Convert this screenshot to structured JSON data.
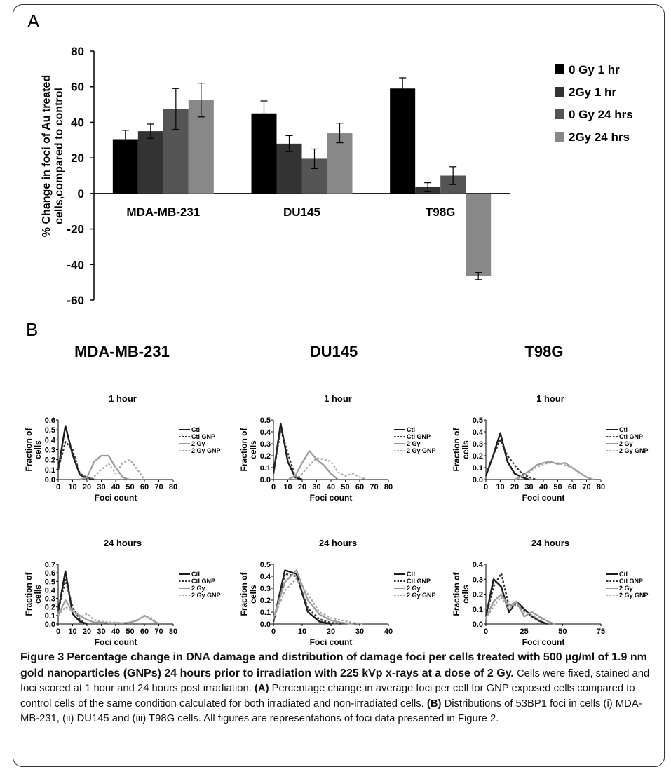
{
  "panel_a_label": "A",
  "panel_b_label": "B",
  "columns": [
    "MDA-MB-231",
    "DU145",
    "T98G"
  ],
  "chart_data": [
    {
      "id": "A",
      "type": "bar",
      "ylabel": "% Change in foci of Au treated cells,compared to control",
      "xlabel": "",
      "categories": [
        "MDA-MB-231",
        "DU145",
        "T98G"
      ],
      "ylim": [
        -60,
        80
      ],
      "yticks": [
        -60,
        -40,
        -20,
        0,
        20,
        40,
        60,
        80
      ],
      "legend_position": "right",
      "series": [
        {
          "name": "0 Gy 1 hr",
          "color": "#000000",
          "values": [
            30.5,
            45,
            59
          ],
          "errors": [
            5,
            7,
            6
          ]
        },
        {
          "name": "2Gy 1 hr",
          "color": "#333333",
          "values": [
            35,
            28,
            3.5
          ],
          "errors": [
            4,
            4.5,
            2.5
          ]
        },
        {
          "name": "0 Gy 24 hrs",
          "color": "#555555",
          "values": [
            47.5,
            19.5,
            10
          ],
          "errors": [
            11.5,
            5.5,
            5
          ]
        },
        {
          "name": "2Gy 24 hrs",
          "color": "#888888",
          "values": [
            52.5,
            34,
            -46.5
          ],
          "errors": [
            9.5,
            5.5,
            2
          ]
        }
      ]
    },
    {
      "id": "B-MDA-1h",
      "type": "line",
      "title": "1 hour",
      "xlabel": "Foci count",
      "ylabel": "Fraction of cells",
      "xlim": [
        0,
        80
      ],
      "ylim": [
        0,
        0.6
      ],
      "xticks": [
        0,
        10,
        20,
        30,
        40,
        50,
        60,
        70,
        80
      ],
      "yticks": [
        0,
        0.1,
        0.2,
        0.3,
        0.4,
        0.5,
        0.6
      ],
      "series": [
        {
          "name": "Ctl",
          "style": "solid-dark",
          "x": [
            0,
            5,
            10,
            15,
            20,
            25
          ],
          "y": [
            0.1,
            0.54,
            0.25,
            0.05,
            0.01,
            0
          ]
        },
        {
          "name": "Ctl GNP",
          "style": "dash-dark",
          "x": [
            0,
            5,
            10,
            15,
            20,
            25
          ],
          "y": [
            0.1,
            0.38,
            0.3,
            0.06,
            0.02,
            0
          ]
        },
        {
          "name": "2 Gy",
          "style": "solid-grey",
          "x": [
            15,
            20,
            25,
            30,
            35,
            40,
            45,
            50
          ],
          "y": [
            0,
            0.02,
            0.18,
            0.24,
            0.24,
            0.12,
            0.02,
            0
          ]
        },
        {
          "name": "2 Gy GNP",
          "style": "dash-grey",
          "x": [
            20,
            25,
            30,
            35,
            40,
            45,
            50,
            55,
            60
          ],
          "y": [
            0,
            0.03,
            0.1,
            0.16,
            0.06,
            0.17,
            0.2,
            0.1,
            0
          ]
        }
      ]
    },
    {
      "id": "B-DU145-1h",
      "type": "line",
      "title": "1 hour",
      "xlabel": "Foci count",
      "ylabel": "Fraction of cells",
      "xlim": [
        0,
        80
      ],
      "ylim": [
        0,
        0.5
      ],
      "xticks": [
        0,
        10,
        20,
        30,
        40,
        50,
        60,
        70,
        80
      ],
      "yticks": [
        0,
        0.1,
        0.2,
        0.3,
        0.4,
        0.5
      ],
      "series": [
        {
          "name": "Ctl",
          "style": "solid-dark",
          "x": [
            0,
            5,
            10,
            15,
            20
          ],
          "y": [
            0.05,
            0.47,
            0.15,
            0.02,
            0
          ]
        },
        {
          "name": "Ctl GNP",
          "style": "dash-dark",
          "x": [
            0,
            5,
            10,
            15,
            20
          ],
          "y": [
            0.05,
            0.42,
            0.22,
            0.03,
            0
          ]
        },
        {
          "name": "2 Gy",
          "style": "solid-grey",
          "x": [
            10,
            15,
            20,
            25,
            30,
            35,
            40,
            45
          ],
          "y": [
            0,
            0.03,
            0.14,
            0.24,
            0.17,
            0.12,
            0.05,
            0
          ]
        },
        {
          "name": "2 Gy GNP",
          "style": "dash-grey",
          "x": [
            15,
            20,
            25,
            30,
            35,
            40,
            45,
            50,
            55,
            60,
            65
          ],
          "y": [
            0,
            0.05,
            0.12,
            0.18,
            0.17,
            0.15,
            0.06,
            0.03,
            0.05,
            0.02,
            0
          ]
        }
      ]
    },
    {
      "id": "B-T98G-1h",
      "type": "line",
      "title": "1 hour",
      "xlabel": "Foci count",
      "ylabel": "Fraction of cells",
      "xlim": [
        0,
        80
      ],
      "ylim": [
        0,
        0.5
      ],
      "xticks": [
        0,
        10,
        20,
        30,
        40,
        50,
        60,
        70,
        80
      ],
      "yticks": [
        0,
        0.1,
        0.2,
        0.3,
        0.4,
        0.5
      ],
      "series": [
        {
          "name": "Ctl",
          "style": "solid-dark",
          "x": [
            0,
            5,
            10,
            15,
            20,
            25,
            30
          ],
          "y": [
            0.03,
            0.2,
            0.39,
            0.15,
            0.05,
            0.02,
            0
          ]
        },
        {
          "name": "Ctl GNP",
          "style": "dash-dark",
          "x": [
            0,
            5,
            10,
            15,
            20,
            25,
            30,
            35
          ],
          "y": [
            0.05,
            0.2,
            0.33,
            0.2,
            0.12,
            0.05,
            0.02,
            0
          ]
        },
        {
          "name": "2 Gy",
          "style": "solid-grey",
          "x": [
            20,
            25,
            30,
            35,
            40,
            45,
            50,
            55,
            60,
            65,
            70,
            75
          ],
          "y": [
            0,
            0.03,
            0.07,
            0.12,
            0.14,
            0.15,
            0.13,
            0.14,
            0.1,
            0.06,
            0.02,
            0
          ]
        },
        {
          "name": "2 Gy GNP",
          "style": "dash-grey",
          "x": [
            20,
            25,
            30,
            35,
            40,
            45,
            50,
            55,
            60,
            65,
            70,
            75
          ],
          "y": [
            0,
            0.02,
            0.06,
            0.1,
            0.13,
            0.14,
            0.14,
            0.12,
            0.1,
            0.05,
            0.02,
            0
          ]
        }
      ]
    },
    {
      "id": "B-MDA-24h",
      "type": "line",
      "title": "24 hours",
      "xlabel": "Foci count",
      "ylabel": "Fraction of cells",
      "xlim": [
        0,
        80
      ],
      "ylim": [
        0,
        0.7
      ],
      "xticks": [
        0,
        10,
        20,
        30,
        40,
        50,
        60,
        70,
        80
      ],
      "yticks": [
        0,
        0.1,
        0.2,
        0.3,
        0.4,
        0.5,
        0.6,
        0.7
      ],
      "series": [
        {
          "name": "Ctl",
          "style": "solid-dark",
          "x": [
            0,
            5,
            10,
            15,
            20
          ],
          "y": [
            0.15,
            0.62,
            0.12,
            0.03,
            0
          ]
        },
        {
          "name": "Ctl GNP",
          "style": "dash-dark",
          "x": [
            0,
            5,
            10,
            15,
            20
          ],
          "y": [
            0.15,
            0.52,
            0.2,
            0.05,
            0
          ]
        },
        {
          "name": "2 Gy",
          "style": "solid-grey",
          "x": [
            0,
            5,
            10,
            15,
            20,
            25,
            30,
            35,
            40,
            45,
            50,
            55,
            60,
            65,
            70
          ],
          "y": [
            0.1,
            0.28,
            0.15,
            0.1,
            0.05,
            0.02,
            0.02,
            0.01,
            0.01,
            0.01,
            0.02,
            0.04,
            0.1,
            0.05,
            0
          ]
        },
        {
          "name": "2 Gy GNP",
          "style": "dash-grey",
          "x": [
            0,
            5,
            10,
            15,
            20,
            25,
            30,
            35,
            40,
            45,
            50,
            55,
            60,
            65,
            70
          ],
          "y": [
            0.1,
            0.2,
            0.15,
            0.08,
            0.12,
            0.05,
            0.03,
            0.02,
            0.02,
            0.01,
            0.02,
            0.05,
            0.09,
            0.07,
            0
          ]
        }
      ]
    },
    {
      "id": "B-DU145-24h",
      "type": "line",
      "title": "24 hours",
      "xlabel": "Foci count",
      "ylabel": "Fraction of cells",
      "xlim": [
        0,
        40
      ],
      "ylim": [
        0,
        0.5
      ],
      "xticks": [
        0,
        10,
        20,
        30,
        40
      ],
      "yticks": [
        0,
        0.1,
        0.2,
        0.3,
        0.4,
        0.5
      ],
      "series": [
        {
          "name": "Ctl",
          "style": "solid-dark",
          "x": [
            0,
            4,
            8,
            12,
            16,
            20
          ],
          "y": [
            0.02,
            0.45,
            0.42,
            0.1,
            0.02,
            0
          ]
        },
        {
          "name": "Ctl GNP",
          "style": "dash-dark",
          "x": [
            0,
            4,
            8,
            12,
            16,
            20,
            24
          ],
          "y": [
            0.02,
            0.42,
            0.4,
            0.13,
            0.04,
            0.01,
            0
          ]
        },
        {
          "name": "2 Gy",
          "style": "solid-grey",
          "x": [
            0,
            4,
            8,
            12,
            16,
            20,
            24,
            28
          ],
          "y": [
            0.05,
            0.35,
            0.45,
            0.2,
            0.08,
            0.03,
            0.01,
            0
          ]
        },
        {
          "name": "2 Gy GNP",
          "style": "dash-grey",
          "x": [
            0,
            4,
            8,
            12,
            16,
            20,
            24,
            28,
            32
          ],
          "y": [
            0.04,
            0.28,
            0.38,
            0.25,
            0.1,
            0.05,
            0.03,
            0.01,
            0
          ]
        }
      ]
    },
    {
      "id": "B-T98G-24h",
      "type": "line",
      "title": "24 hours",
      "xlabel": "Foci count",
      "ylabel": "Fraction of cells",
      "xlim": [
        0,
        75
      ],
      "ylim": [
        0,
        0.4
      ],
      "xticks": [
        0,
        25,
        50,
        75
      ],
      "yticks": [
        0,
        0.1,
        0.2,
        0.3,
        0.4
      ],
      "series": [
        {
          "name": "Ctl",
          "style": "solid-dark",
          "x": [
            0,
            5,
            10,
            15,
            20,
            25,
            30,
            35,
            40
          ],
          "y": [
            0.05,
            0.3,
            0.25,
            0.08,
            0.15,
            0.1,
            0.05,
            0.02,
            0
          ]
        },
        {
          "name": "Ctl GNP",
          "style": "dash-dark",
          "x": [
            0,
            5,
            10,
            15,
            20,
            25,
            30,
            35,
            40
          ],
          "y": [
            0.05,
            0.25,
            0.34,
            0.12,
            0.13,
            0.09,
            0.05,
            0.02,
            0
          ]
        },
        {
          "name": "2 Gy",
          "style": "solid-grey",
          "x": [
            0,
            5,
            10,
            15,
            20,
            25,
            30,
            35,
            40,
            45
          ],
          "y": [
            0.04,
            0.15,
            0.2,
            0.12,
            0.15,
            0.05,
            0.08,
            0.05,
            0.02,
            0
          ]
        },
        {
          "name": "2 Gy GNP",
          "style": "dash-grey",
          "x": [
            0,
            5,
            10,
            15,
            20,
            25,
            30,
            35,
            40,
            45
          ],
          "y": [
            0.03,
            0.12,
            0.18,
            0.1,
            0.14,
            0.08,
            0.06,
            0.04,
            0.02,
            0
          ]
        }
      ]
    }
  ],
  "caption": {
    "figure_label": "Figure 3",
    "title": "Percentage change in DNA damage and distribution of damage foci per cells treated with 500 µg/ml of 1.9 nm gold nanoparticles (GNPs) 24 hours prior to irradiation with 225 kVp x-rays at a dose of 2 Gy.",
    "sentence1": "Cells were fixed, stained and foci scored at 1 hour and 24 hours post irradiation.",
    "label_a": "(A)",
    "text_a": "Percentage change in average foci per cell for GNP exposed cells compared to control cells of the same condition calculated for both irradiated and non-irradiated cells.",
    "label_b": "(B)",
    "text_b": "Distributions of 53BP1 foci in cells (i) MDA-MB-231, (ii) DU145 and (iii) T98G cells. All figures are representations of foci data presented in Figure 2."
  }
}
